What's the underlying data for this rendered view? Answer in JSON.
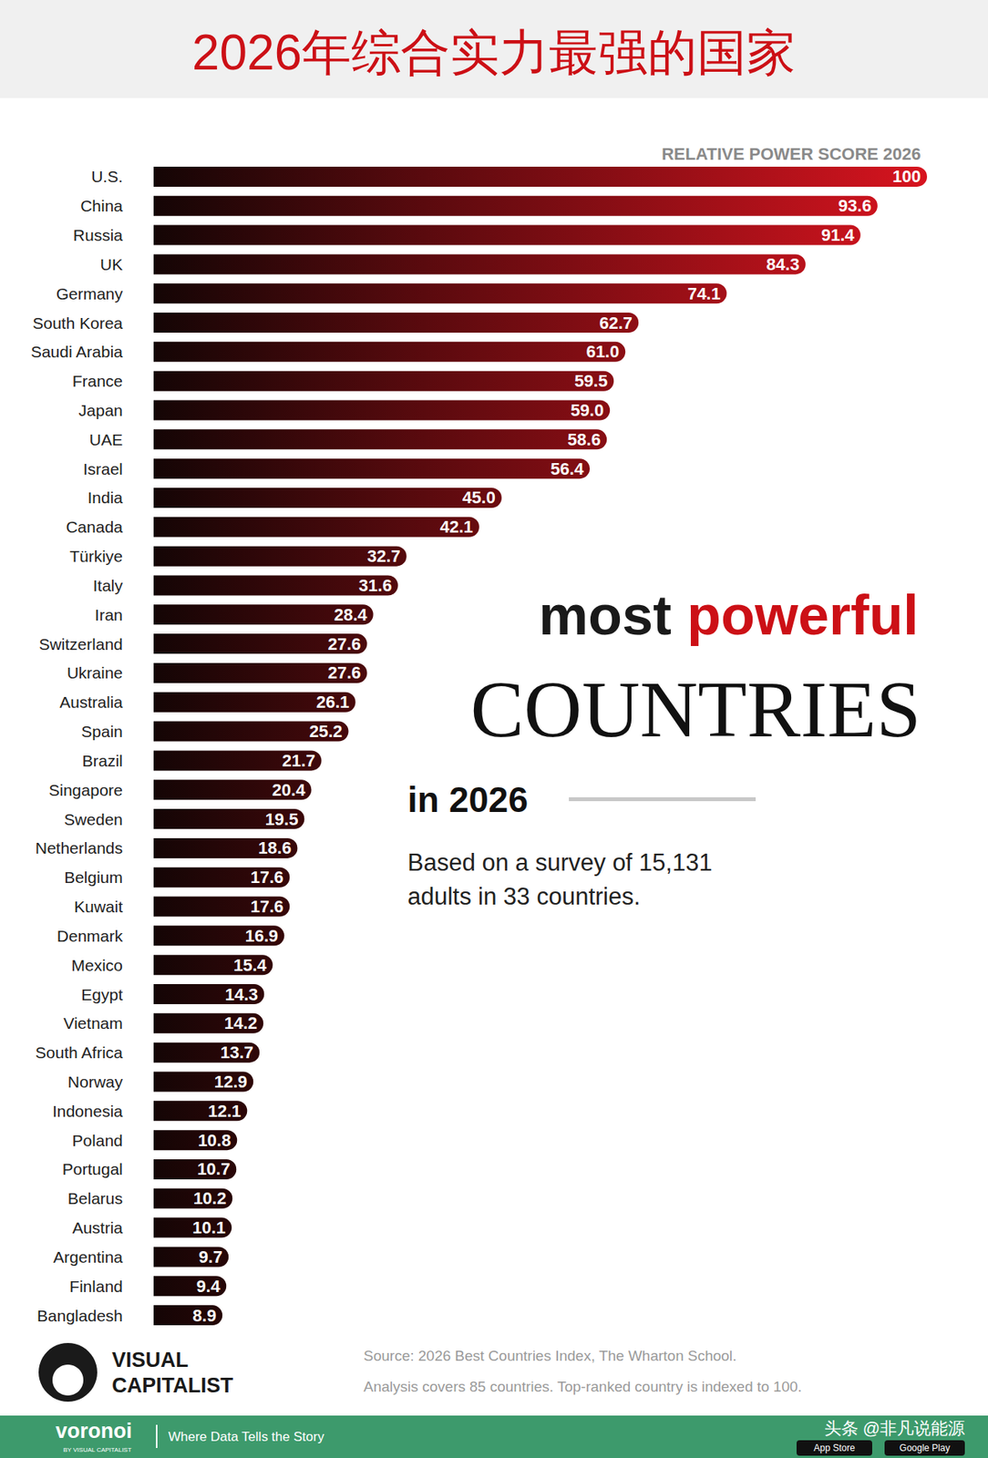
{
  "chart_data": {
    "type": "bar",
    "title": "2026年综合实力最强的国家",
    "x_label": "RELATIVE POWER SCORE 2026",
    "orientation": "horizontal",
    "data_labels": true,
    "tick_labels": "y",
    "grid": false,
    "color": "#d7141f",
    "xlim": [
      0,
      100
    ],
    "categories": [
      "U.S.",
      "China",
      "Russia",
      "UK",
      "Germany",
      "South Korea",
      "Saudi Arabia",
      "France",
      "Japan",
      "UAE",
      "Israel",
      "India",
      "Canada",
      "Türkiye",
      "Italy",
      "Iran",
      "Switzerland",
      "Ukraine",
      "Australia",
      "Spain",
      "Brazil",
      "Singapore",
      "Sweden",
      "Netherlands",
      "Belgium",
      "Kuwait",
      "Denmark",
      "Mexico",
      "Egypt",
      "Vietnam",
      "South Africa",
      "Norway",
      "Indonesia",
      "Poland",
      "Portugal",
      "Belarus",
      "Austria",
      "Argentina",
      "Finland",
      "Bangladesh"
    ],
    "values": [
      100,
      93.6,
      91.4,
      84.3,
      74.1,
      62.7,
      61.0,
      59.5,
      59.0,
      58.6,
      56.4,
      45.0,
      42.1,
      32.7,
      31.6,
      28.4,
      27.6,
      27.6,
      26.1,
      25.2,
      21.7,
      20.4,
      19.5,
      18.6,
      17.6,
      17.6,
      16.9,
      15.4,
      14.3,
      14.2,
      13.7,
      12.9,
      12.1,
      10.8,
      10.7,
      10.2,
      10.1,
      9.7,
      9.4,
      8.9
    ],
    "value_labels": [
      "100",
      "93.6",
      "91.4",
      "84.3",
      "74.1",
      "62.7",
      "61.0",
      "59.5",
      "59.0",
      "58.6",
      "56.4",
      "45.0",
      "42.1",
      "32.7",
      "31.6",
      "28.4",
      "27.6",
      "27.6",
      "26.1",
      "25.2",
      "21.7",
      "20.4",
      "19.5",
      "18.6",
      "17.6",
      "17.6",
      "16.9",
      "15.4",
      "14.3",
      "14.2",
      "13.7",
      "12.9",
      "12.1",
      "10.8",
      "10.7",
      "10.2",
      "10.1",
      "9.7",
      "9.4",
      "8.9"
    ],
    "annotations": {
      "headline_dark": "most",
      "headline_red": "powerful",
      "headline_big": "COUNTRIES",
      "headline_year": "in 2026",
      "note": "Based on a survey of 15,131 adults in 33 countries.",
      "source": "Source: 2026 Best Countries Index, The Wharton School.",
      "analysis": "Analysis covers 85 countries. Top-ranked country is indexed to 100.",
      "brand_lines": [
        "VISUAL",
        "CAPITALIST"
      ],
      "footer_brand": "voronoi",
      "footer_brand_sub": "BY VISUAL CAPITALIST",
      "footer_tagline": "Where Data Tells the Story",
      "watermark": "头条 @非凡说能源",
      "badges": [
        "App Store",
        "Google Play"
      ]
    }
  }
}
